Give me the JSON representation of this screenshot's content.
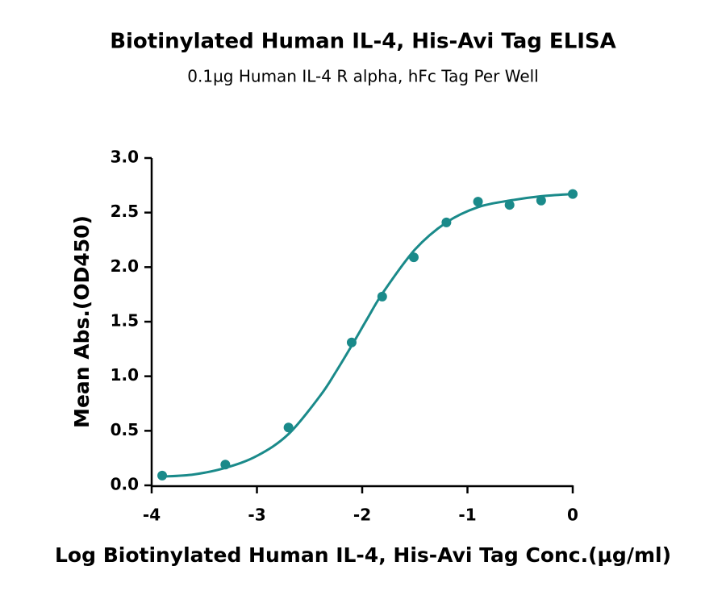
{
  "chart_data": {
    "type": "scatter",
    "title": "Biotinylated Human IL-4, His-Avi Tag ELISA",
    "subtitle": "0.1µg Human IL-4 R alpha, hFc Tag Per Well",
    "x_label": "Log Biotinylated Human IL-4, His-Avi Tag Conc.(µg/ml)",
    "y_label": "Mean Abs.(OD450)",
    "x": [
      -3.9,
      -3.3,
      -2.7,
      -2.1,
      -1.81,
      -1.51,
      -1.2,
      -0.9,
      -0.6,
      -0.3,
      0
    ],
    "series": [
      {
        "color": "#1a8a8a",
        "values": [
          0.09,
          0.19,
          0.53,
          1.31,
          1.73,
          2.09,
          2.41,
          2.6,
          2.57,
          2.61,
          2.67
        ]
      }
    ],
    "fit": {
      "color": "#1a8a8a",
      "x": [
        -3.9,
        -3.6,
        -3.3,
        -3.0,
        -2.7,
        -2.4,
        -2.25,
        -2.1,
        -1.95,
        -1.8,
        -1.5,
        -1.2,
        -0.9,
        -0.6,
        -0.3,
        0
      ],
      "values": [
        0.08,
        0.1,
        0.16,
        0.27,
        0.47,
        0.82,
        1.04,
        1.28,
        1.53,
        1.77,
        2.16,
        2.41,
        2.55,
        2.61,
        2.65,
        2.67
      ]
    },
    "xlim": [
      -4,
      0
    ],
    "xticks": [
      -4,
      -3,
      -2,
      -1,
      0
    ],
    "ylim": [
      0,
      3
    ],
    "yticks": [
      {
        "value": 0,
        "label": "0.0"
      },
      {
        "value": 0.5,
        "label": "0.5"
      },
      {
        "value": 1,
        "label": "1.0"
      },
      {
        "value": 1.5,
        "label": "1.5"
      },
      {
        "value": 2,
        "label": "2.0"
      },
      {
        "value": 2.5,
        "label": "2.5"
      },
      {
        "value": 3,
        "label": "3.0"
      }
    ]
  }
}
